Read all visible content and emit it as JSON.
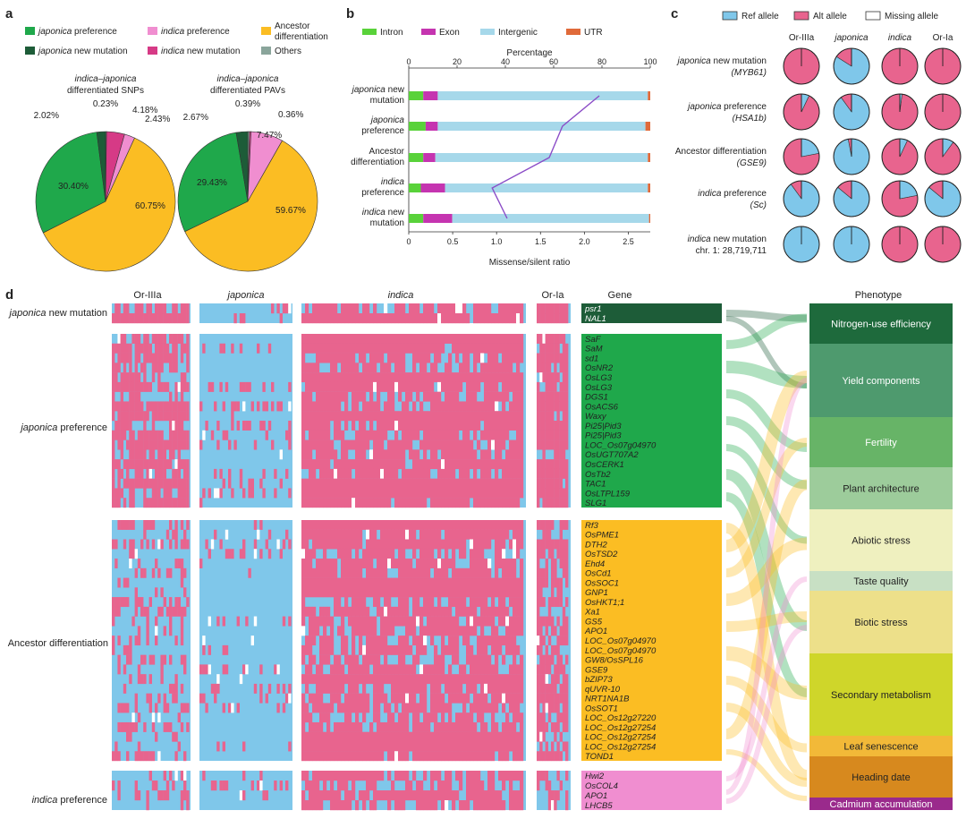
{
  "colors": {
    "japonica_pref": "#1fa84b",
    "japonica_new": "#1d5c38",
    "indica_pref": "#f08ed0",
    "indica_new": "#d63a86",
    "ancestor": "#fbbd23",
    "others": "#8aa59b",
    "intron": "#59d23a",
    "exon": "#c534b0",
    "intergenic": "#a6d8ea",
    "utr": "#e06a3a",
    "ref": "#7fc7ea",
    "alt": "#e8648e",
    "line": "#8b4cc7"
  },
  "chart_data": [
    {
      "panel": "a",
      "type": "pie",
      "legend": [
        {
          "key": "japonica_pref",
          "name": "japonica preference"
        },
        {
          "key": "indica_pref",
          "name": "indica preference"
        },
        {
          "key": "ancestor",
          "name": "Ancestor differentiation"
        },
        {
          "key": "japonica_new",
          "name": "japonica new mutation"
        },
        {
          "key": "indica_new",
          "name": "indica new mutation"
        },
        {
          "key": "others",
          "name": "Others"
        }
      ],
      "pies": [
        {
          "title_line1": "indica–japonica",
          "title_line2": "differentiated SNPs",
          "slices": [
            {
              "key": "others",
              "value": 0.23,
              "label": "0.23%"
            },
            {
              "key": "indica_new",
              "value": 4.18,
              "label": "4.18%"
            },
            {
              "key": "indica_pref",
              "value": 2.43,
              "label": "2.43%"
            },
            {
              "key": "ancestor",
              "value": 60.75,
              "label": "60.75%"
            },
            {
              "key": "japonica_pref",
              "value": 30.4,
              "label": "30.40%"
            },
            {
              "key": "japonica_new",
              "value": 2.02,
              "label": "2.02%"
            }
          ]
        },
        {
          "title_line1": "indica–japonica",
          "title_line2": "differentiated PAVs",
          "slices": [
            {
              "key": "others",
              "value": 0.39,
              "label": "0.39%"
            },
            {
              "key": "indica_new",
              "value": 0.36,
              "label": "0.36%"
            },
            {
              "key": "indica_pref",
              "value": 7.47,
              "label": "7.47%"
            },
            {
              "key": "ancestor",
              "value": 59.67,
              "label": "59.67%"
            },
            {
              "key": "japonica_pref",
              "value": 29.43,
              "label": "29.43%"
            },
            {
              "key": "japonica_new",
              "value": 2.67,
              "label": "2.67%"
            }
          ]
        }
      ]
    },
    {
      "panel": "b",
      "type": "bar",
      "stacked": true,
      "orientation": "horizontal",
      "legend": [
        "Intron",
        "Exon",
        "Intergenic",
        "UTR"
      ],
      "top_axis_label": "Percentage",
      "top_ticks": [
        0,
        20,
        40,
        60,
        80,
        100
      ],
      "bottom_axis_label": "Missense/silent ratio",
      "bottom_ticks": [
        "0",
        "0.5",
        "1.0",
        "1.5",
        "2.0",
        "2.5"
      ],
      "bottom_range": [
        0,
        2.75
      ],
      "categories": [
        {
          "line1": "japonica new",
          "line2": "mutation",
          "it1": "japonica",
          "rest1": " new"
        },
        {
          "line1": "japonica",
          "line2": "preference",
          "it1": "japonica",
          "rest1": ""
        },
        {
          "line1": "Ancestor",
          "line2": "differentiation",
          "it1": "",
          "rest1": "Ancestor"
        },
        {
          "line1": "indica",
          "line2": "preference",
          "it1": "indica",
          "rest1": ""
        },
        {
          "line1": "indica new",
          "line2": "mutation",
          "it1": "indica",
          "rest1": " new"
        }
      ],
      "series": [
        {
          "name": "Intron",
          "values": [
            6,
            7,
            6,
            5,
            6
          ]
        },
        {
          "name": "Exon",
          "values": [
            6,
            5,
            5,
            10,
            12
          ]
        },
        {
          "name": "Intergenic",
          "values": [
            87,
            86,
            88,
            84,
            81.5
          ]
        },
        {
          "name": "UTR",
          "values": [
            1,
            2,
            1,
            1,
            0.5
          ]
        }
      ],
      "ratio_line": [
        2.17,
        1.75,
        1.6,
        0.95,
        1.12
      ]
    },
    {
      "panel": "c",
      "type": "pie",
      "legend": [
        {
          "key": "ref",
          "name": "Ref allele"
        },
        {
          "key": "alt",
          "name": "Alt allele"
        },
        {
          "key": "missing",
          "name": "Missing allele"
        }
      ],
      "columns": [
        "Or-IIIa",
        "japonica",
        "indica",
        "Or-Ia"
      ],
      "rows": [
        {
          "name": "japonica new mutation",
          "gene": "(MYB61)",
          "alt": [
            1.0,
            0.16,
            1.0,
            1.0
          ]
        },
        {
          "name": "japonica preference",
          "gene": "(HSA1b)",
          "alt": [
            0.93,
            0.1,
            0.98,
            1.0
          ]
        },
        {
          "name": "Ancestor differentiation",
          "gene": "(GSE9)",
          "alt": [
            0.78,
            0.03,
            0.93,
            0.9
          ]
        },
        {
          "name": "indica preference",
          "gene": "(Sc)",
          "alt": [
            0.1,
            0.14,
            0.78,
            0.14
          ]
        },
        {
          "name": "indica new mutation",
          "gene": "chr. 1: 28,719,711",
          "alt": [
            0.0,
            0.0,
            1.0,
            1.0
          ]
        }
      ]
    },
    {
      "panel": "d",
      "type": "heatmap",
      "columns": [
        "Or-IIIa",
        "japonica",
        "indica",
        "Or-Ia"
      ],
      "gene_header": "Gene",
      "phenotype_header": "Phenotype",
      "groups": [
        {
          "name": "japonica new mutation",
          "key": "japonica_new",
          "genes": [
            "psr1",
            "NAL1"
          ]
        },
        {
          "name": "japonica preference",
          "key": "japonica_pref",
          "genes": [
            "SaF",
            "SaM",
            "sd1",
            "OsNR2",
            "OsLG3",
            "OsLG3",
            "DGS1",
            "OsACS6",
            "Waxy",
            "Pi25|Pid3",
            "Pi25|Pid3",
            "LOC_Os07g04970",
            "OsUGT707A2",
            "OsCERK1",
            "OsTb2",
            "TAC1",
            "OsLTPL159",
            "SLG1"
          ]
        },
        {
          "name": "Ancestor differentiation",
          "key": "ancestor",
          "genes": [
            "Rf3",
            "OsPME1",
            "DTH2",
            "OsTSD2",
            "Ehd4",
            "OsCd1",
            "OsSOC1",
            "GNP1",
            "OsHKT1;1",
            "Xa1",
            "GS5",
            "APO1",
            "LOC_Os07g04970",
            "LOC_Os07g04970",
            "GW8/OsSPL16",
            "GSE9",
            "bZIP73",
            "qUVR-10",
            "NRT1NA1B",
            "OsSOT1",
            "LOC_Os12g27220",
            "LOC_Os12g27254",
            "LOC_Os12g27254",
            "LOC_Os12g27254",
            "TOND1"
          ]
        },
        {
          "name": "indica preference",
          "key": "indica_pref",
          "genes": [
            "Hwi2",
            "OsCOL4",
            "APO1",
            "LHCB5"
          ]
        }
      ],
      "phenotypes": [
        {
          "name": "Nitrogen-use efficiency",
          "color": "#1e6a3c",
          "text": "#ffffff"
        },
        {
          "name": "Yield components",
          "color": "#4e9a6e",
          "text": "#ffffff"
        },
        {
          "name": "Fertility",
          "color": "#67b467",
          "text": "#ffffff"
        },
        {
          "name": "Plant architecture",
          "color": "#9dcc9b",
          "text": "#222222"
        },
        {
          "name": "Abiotic stress",
          "color": "#eff0bf",
          "text": "#222222"
        },
        {
          "name": "Taste quality",
          "color": "#c8e0c4",
          "text": "#222222"
        },
        {
          "name": "Biotic stress",
          "color": "#ede08a",
          "text": "#222222"
        },
        {
          "name": "Secondary metabolism",
          "color": "#cfd62a",
          "text": "#222222"
        },
        {
          "name": "Leaf senescence",
          "color": "#f2b938",
          "text": "#222222"
        },
        {
          "name": "Heading date",
          "color": "#d7891e",
          "text": "#222222"
        },
        {
          "name": "Cadmium accumulation",
          "color": "#9a2a8c",
          "text": "#ffffff"
        }
      ]
    }
  ],
  "panel_labels": [
    "a",
    "b",
    "c",
    "d"
  ]
}
